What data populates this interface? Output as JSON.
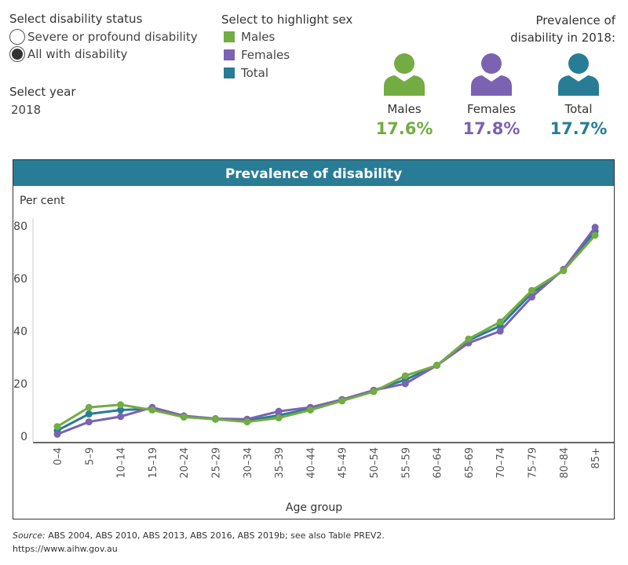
{
  "filters": {
    "status_title": "Select disability status",
    "status_options": [
      {
        "label": "Severe or profound disability",
        "selected": false
      },
      {
        "label": "All with disability",
        "selected": true
      }
    ],
    "year_title": "Select year",
    "year_value": "2018",
    "sex_title": "Select to highlight sex",
    "sex_options": [
      {
        "label": "Males",
        "color": "#72ac43"
      },
      {
        "label": "Females",
        "color": "#7b62b2"
      },
      {
        "label": "Total",
        "color": "#287c96"
      }
    ]
  },
  "summary": {
    "title": "Prevalence of disability in 2018:",
    "items": [
      {
        "label": "Males",
        "value": "17.6%",
        "color": "#72ac43",
        "icon": "person-icon"
      },
      {
        "label": "Females",
        "value": "17.8%",
        "color": "#7b62b2",
        "icon": "person-icon"
      },
      {
        "label": "Total",
        "value": "17.7%",
        "color": "#287c96",
        "icon": "person-icon"
      }
    ]
  },
  "chart_data": {
    "type": "line",
    "title": "Prevalence of disability",
    "ylabel": "Per cent",
    "xlabel": "Age group",
    "ylim": [
      0,
      85
    ],
    "yticks": [
      "0",
      "20",
      "40",
      "60",
      "80"
    ],
    "grid": false,
    "categories": [
      "0–4",
      "5–9",
      "10–14",
      "15–19",
      "20–24",
      "25–29",
      "30–34",
      "35–39",
      "40–44",
      "45–49",
      "50–54",
      "55–59",
      "60–64",
      "65–69",
      "70–74",
      "75–79",
      "80–84",
      "85+"
    ],
    "series": [
      {
        "name": "Total",
        "color": "#287c96",
        "values": [
          2.2,
          8.5,
          10,
          10.5,
          7.5,
          6.5,
          6,
          8,
          10.5,
          13.5,
          17.5,
          21.5,
          27,
          36.5,
          42,
          54.5,
          63.2,
          78
        ]
      },
      {
        "name": "Females",
        "color": "#7b62b2",
        "values": [
          0.8,
          5.5,
          7.5,
          11,
          7.8,
          6.7,
          6.5,
          9.5,
          11,
          14,
          17.5,
          20,
          27,
          35.5,
          40,
          53,
          63.5,
          79.5
        ]
      },
      {
        "name": "Males",
        "color": "#72ac43",
        "values": [
          3.7,
          11,
          12,
          10,
          7.3,
          6.5,
          5.5,
          7,
          10,
          13.5,
          17,
          23,
          27,
          37,
          43.5,
          55.5,
          63,
          76.5
        ]
      }
    ]
  },
  "footer": {
    "source_label": "Source:",
    "source_text": " ABS 2004, ABS 2010, ABS 2013, ABS 2016, ABS 2019b; see also Table PREV2.",
    "link": "https://www.aihw.gov.au"
  }
}
